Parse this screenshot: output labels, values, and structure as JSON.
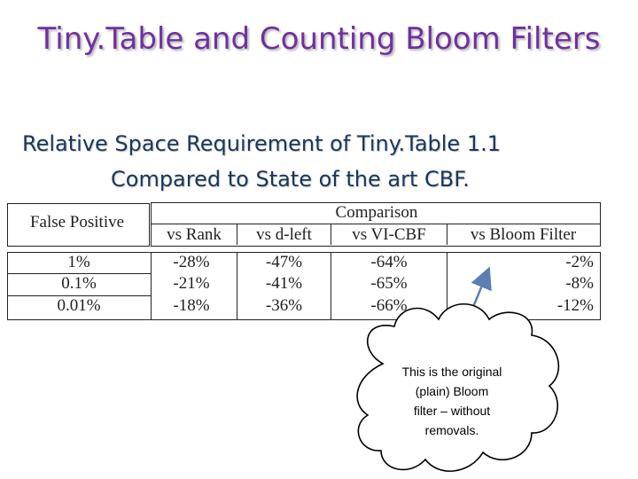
{
  "title": "Tiny.Table and Counting Bloom Filters",
  "subtitle": {
    "line1": "Relative Space Requirement of Tiny.Table 1.1",
    "line2": "Compared to State of the art CBF."
  },
  "table": {
    "row_header": "False Positive",
    "group_header": "Comparison",
    "columns": [
      "vs Rank",
      "vs d-left",
      "vs VI-CBF",
      "vs Bloom Filter"
    ],
    "rows": [
      {
        "false_positive": "1%",
        "values": [
          "-28%",
          "-47%",
          "-64%",
          "-2%"
        ]
      },
      {
        "false_positive": "0.1%",
        "values": [
          "-21%",
          "-41%",
          "-65%",
          "-8%"
        ]
      },
      {
        "false_positive": "0.01%",
        "values": [
          "-18%",
          "-36%",
          "-66%",
          "-12%"
        ]
      }
    ]
  },
  "callout": {
    "line1": "This is the original",
    "line2": "(plain) Bloom",
    "line3": "filter – without",
    "line4": "removals."
  },
  "colors": {
    "title": "#7030a0",
    "subtitle": "#17375e",
    "arrow": "#5b7fb4"
  }
}
